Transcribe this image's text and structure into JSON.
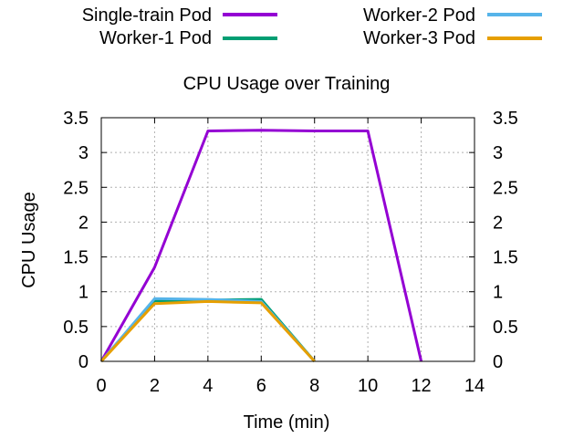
{
  "chart_data": {
    "type": "line",
    "title": "CPU Usage over Training",
    "xlabel": "Time (min)",
    "ylabel": "CPU Usage",
    "xlim": [
      0,
      14
    ],
    "ylim": [
      0,
      3.5
    ],
    "x_ticks": [
      "0",
      "2",
      "4",
      "6",
      "8",
      "10",
      "12",
      "14"
    ],
    "y_ticks": [
      "0",
      "0.5",
      "1",
      "1.5",
      "2",
      "2.5",
      "3",
      "3.5"
    ],
    "y2_ticks": [
      "0",
      "0.5",
      "1",
      "1.5",
      "2",
      "2.5",
      "3",
      "3.5"
    ],
    "grid": true,
    "legend_position": "top",
    "series": [
      {
        "name": "Single-train Pod",
        "color": "#9400d3",
        "x": [
          0,
          2,
          4,
          6,
          8,
          10,
          12
        ],
        "values": [
          0,
          1.35,
          3.31,
          3.32,
          3.31,
          3.31,
          0
        ]
      },
      {
        "name": "Worker-1 Pod",
        "color": "#009e73",
        "x": [
          0,
          2,
          4,
          6,
          8
        ],
        "values": [
          0,
          0.87,
          0.88,
          0.89,
          0
        ]
      },
      {
        "name": "Worker-2 Pod",
        "color": "#56b4e9",
        "x": [
          0,
          2,
          4,
          6,
          8
        ],
        "values": [
          0,
          0.9,
          0.89,
          0.86,
          0
        ]
      },
      {
        "name": "Worker-3 Pod",
        "color": "#e69f00",
        "x": [
          0,
          2,
          4,
          6,
          8
        ],
        "values": [
          0,
          0.83,
          0.86,
          0.84,
          0
        ]
      }
    ]
  }
}
